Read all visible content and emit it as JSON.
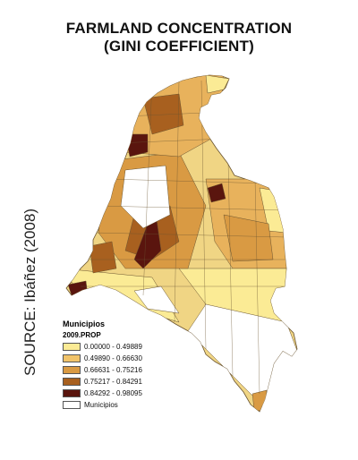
{
  "title_line1": "FARMLAND CONCENTRATION",
  "title_line2": "(GINI COEFFICIENT)",
  "source": "SOURCE: Ibáñez (2008)",
  "legend": {
    "title": "Municipios",
    "subtitle": "2009.PROP",
    "items": [
      {
        "label": "0.00000 - 0.49889",
        "color": "#fbeb95"
      },
      {
        "label": "0.49890 - 0.66630",
        "color": "#f2c46a"
      },
      {
        "label": "0.66631 - 0.75216",
        "color": "#d99a43"
      },
      {
        "label": "0.75217 - 0.84291",
        "color": "#a8601f"
      },
      {
        "label": "0.84292 - 0.98095",
        "color": "#5a150e"
      },
      {
        "label": "Municipios",
        "color": "#ffffff"
      }
    ]
  }
}
